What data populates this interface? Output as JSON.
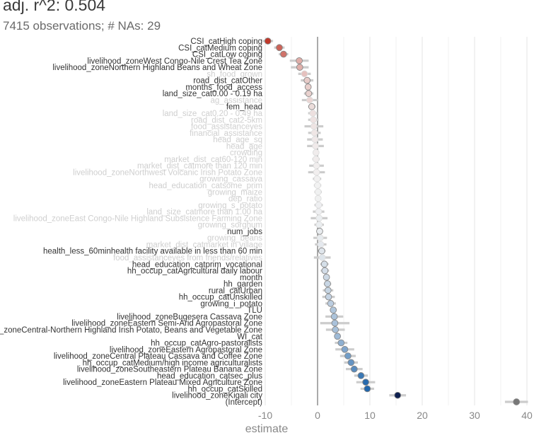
{
  "title": "adj. r^2: 0.504",
  "subtitle": "7415 observations; # NAs: 29",
  "chart_data": {
    "type": "scatter",
    "xlabel": "estimate",
    "xlim": [
      -10,
      40
    ],
    "xticks": [
      -10,
      0,
      10,
      20,
      30,
      40
    ],
    "grid": true,
    "colors": {
      "negative": "#c0392b",
      "neutral": "#f2f2f2",
      "positive": "#2166ac",
      "intercept": "#777777"
    },
    "points": [
      {
        "label": "CSI_catHigh coping",
        "estimate": -9.5,
        "ci": [
          -10.5,
          -8.5
        ],
        "sig": true
      },
      {
        "label": "CSI_catMedium coping",
        "estimate": -7.3,
        "ci": [
          -8.3,
          -6.3
        ],
        "sig": true
      },
      {
        "label": "CSI_catLow coping",
        "estimate": -6.5,
        "ci": [
          -7.4,
          -5.6
        ],
        "sig": true
      },
      {
        "label": "livelihood_zoneWest Congo-Nile Crest Tea Zone",
        "estimate": -3.5,
        "ci": [
          -5.3,
          -1.7
        ],
        "sig": true
      },
      {
        "label": "livelihood_zoneNorthern Highland Beans and Wheat Zone",
        "estimate": -3.4,
        "ci": [
          -5.1,
          -1.7
        ],
        "sig": true
      },
      {
        "label": "sh_food_grown",
        "estimate": -2.5,
        "ci": [
          -3.7,
          -1.3
        ],
        "sig": false
      },
      {
        "label": "road_dist_catOther",
        "estimate": -2.0,
        "ci": [
          -3.2,
          -0.8
        ],
        "sig": true
      },
      {
        "label": "months_food_access",
        "estimate": -1.8,
        "ci": [
          -2.3,
          -1.3
        ],
        "sig": true
      },
      {
        "label": "land_size_cat0.00 - 0.19 ha",
        "estimate": -1.7,
        "ci": [
          -2.6,
          -0.8
        ],
        "sig": true
      },
      {
        "label": "ag_assistance",
        "estimate": -1.5,
        "ci": [
          -3.0,
          0.0
        ],
        "sig": false
      },
      {
        "label": "fem_head",
        "estimate": -1.1,
        "ci": [
          -1.8,
          -0.4
        ],
        "sig": true
      },
      {
        "label": "land_size_cat0.20 - 0.49 ha",
        "estimate": -0.9,
        "ci": [
          -1.8,
          0.0
        ],
        "sig": false
      },
      {
        "label": "road_dist_cat2-5km",
        "estimate": -0.8,
        "ci": [
          -1.8,
          0.2
        ],
        "sig": false
      },
      {
        "label": "food_assistanceyes",
        "estimate": -0.7,
        "ci": [
          -2.5,
          1.1
        ],
        "sig": false
      },
      {
        "label": "financial_assistance",
        "estimate": -0.6,
        "ci": [
          -1.8,
          0.6
        ],
        "sig": false
      },
      {
        "label": "head_age_sq",
        "estimate": -0.5,
        "ci": [
          -2.0,
          1.0
        ],
        "sig": false
      },
      {
        "label": "head_age",
        "estimate": -0.4,
        "ci": [
          -2.0,
          1.2
        ],
        "sig": false
      },
      {
        "label": "crowding",
        "estimate": -0.3,
        "ci": [
          -0.8,
          0.2
        ],
        "sig": false
      },
      {
        "label": "market_dist_cat60-120 min",
        "estimate": -0.3,
        "ci": [
          -1.0,
          0.4
        ],
        "sig": false
      },
      {
        "label": "market_dist_catmore than 120 min",
        "estimate": -0.2,
        "ci": [
          -1.6,
          1.2
        ],
        "sig": false
      },
      {
        "label": "livelihood_zoneNorthwest Volcanic Irish Potato Zone",
        "estimate": -0.2,
        "ci": [
          -1.8,
          1.4
        ],
        "sig": false
      },
      {
        "label": "growing_cassava",
        "estimate": -0.1,
        "ci": [
          -0.9,
          0.7
        ],
        "sig": false
      },
      {
        "label": "head_education_catsome_prim",
        "estimate": 0.0,
        "ci": [
          -0.7,
          0.7
        ],
        "sig": false
      },
      {
        "label": "growing_maize",
        "estimate": 0.1,
        "ci": [
          -0.6,
          0.8
        ],
        "sig": false
      },
      {
        "label": "dep_ratio",
        "estimate": 0.1,
        "ci": [
          -0.5,
          0.7
        ],
        "sig": false
      },
      {
        "label": "growing_s_potato",
        "estimate": 0.2,
        "ci": [
          -0.6,
          1.0
        ],
        "sig": false
      },
      {
        "label": "land_size_catmore than 1.00 ha",
        "estimate": 0.2,
        "ci": [
          -0.9,
          1.3
        ],
        "sig": false
      },
      {
        "label": "livelihood_zoneEast Congo-Nile Highland Subsistence Farming Zone",
        "estimate": 0.3,
        "ci": [
          -1.3,
          1.9
        ],
        "sig": false
      },
      {
        "label": "growing_sorghum",
        "estimate": 0.3,
        "ci": [
          -0.6,
          1.2
        ],
        "sig": false
      },
      {
        "label": "num_jobs",
        "estimate": 0.4,
        "ci": [
          0.0,
          0.8
        ],
        "sig": true
      },
      {
        "label": "growing_beans",
        "estimate": 0.5,
        "ci": [
          -0.8,
          1.8
        ],
        "sig": false
      },
      {
        "label": "market_dist_catmarket in village",
        "estimate": 0.6,
        "ci": [
          -0.5,
          1.7
        ],
        "sig": false
      },
      {
        "label": "health_less_60minhealth facility available in less than 60 min",
        "estimate": 0.8,
        "ci": [
          0.1,
          1.5
        ],
        "sig": true
      },
      {
        "label": "food_assistanceyes from friends/relatives",
        "estimate": 0.9,
        "ci": [
          -0.7,
          2.5
        ],
        "sig": false
      },
      {
        "label": "head_education_catprim_vocational",
        "estimate": 1.3,
        "ci": [
          0.5,
          2.1
        ],
        "sig": true
      },
      {
        "label": "hh_occup_catAgricultural daily labour",
        "estimate": 1.4,
        "ci": [
          0.6,
          2.2
        ],
        "sig": true
      },
      {
        "label": "month",
        "estimate": 1.7,
        "ci": [
          1.3,
          2.1
        ],
        "sig": true
      },
      {
        "label": "hh_garden",
        "estimate": 1.9,
        "ci": [
          1.2,
          2.6
        ],
        "sig": true
      },
      {
        "label": "rural_catUrban",
        "estimate": 2.0,
        "ci": [
          1.0,
          3.0
        ],
        "sig": true
      },
      {
        "label": "hh_occup_catUnskilled",
        "estimate": 2.1,
        "ci": [
          0.9,
          3.3
        ],
        "sig": true
      },
      {
        "label": "growing_i_potato",
        "estimate": 2.5,
        "ci": [
          1.5,
          3.5
        ],
        "sig": true
      },
      {
        "label": "TLU",
        "estimate": 3.0,
        "ci": [
          2.5,
          3.5
        ],
        "sig": true
      },
      {
        "label": "livelihood_zoneBugesera Cassava Zone",
        "estimate": 3.2,
        "ci": [
          1.5,
          4.9
        ],
        "sig": true
      },
      {
        "label": "livelihood_zoneEastern Semi-Arid Agropastoral Zone",
        "estimate": 3.3,
        "ci": [
          0.5,
          6.1
        ],
        "sig": true
      },
      {
        "label": "livelihood_zoneCentral-Northern Highland Irish Potato, Beans and Vegetable Zone",
        "estimate": 3.4,
        "ci": [
          1.6,
          5.2
        ],
        "sig": true
      },
      {
        "label": "WI_cat",
        "estimate": 3.8,
        "ci": [
          3.2,
          4.4
        ],
        "sig": true
      },
      {
        "label": "hh_occup_catAgro-pastoralists",
        "estimate": 4.5,
        "ci": [
          3.3,
          5.7
        ],
        "sig": true
      },
      {
        "label": "livelihood_zoneEastern Agropastoral Zone",
        "estimate": 5.2,
        "ci": [
          3.4,
          7.0
        ],
        "sig": true
      },
      {
        "label": "livelihood_zoneCentral Plateau Cassava and Coffee Zone",
        "estimate": 5.8,
        "ci": [
          4.3,
          7.3
        ],
        "sig": true
      },
      {
        "label": "hh_occup_catMedium/high income agriculturalists",
        "estimate": 6.4,
        "ci": [
          5.1,
          7.7
        ],
        "sig": true
      },
      {
        "label": "livelihood_zoneSoutheastern Plateau Banana Zone",
        "estimate": 7.0,
        "ci": [
          5.4,
          8.6
        ],
        "sig": true
      },
      {
        "label": "head_education_catsec_plus",
        "estimate": 8.3,
        "ci": [
          7.0,
          9.6
        ],
        "sig": true
      },
      {
        "label": "livelihood_zoneEastern Plateau Mixed Agriculture Zone",
        "estimate": 9.2,
        "ci": [
          7.4,
          11.0
        ],
        "sig": true
      },
      {
        "label": "hh_occup_catSkilled",
        "estimate": 9.5,
        "ci": [
          8.2,
          10.8
        ],
        "sig": true
      },
      {
        "label": "livelihood_zoneKigali city",
        "estimate": 15.3,
        "ci": [
          13.7,
          16.9
        ],
        "sig": true
      },
      {
        "label": "(Intercept)",
        "estimate": 38.0,
        "ci": [
          35.8,
          40.2
        ],
        "sig": true
      }
    ]
  }
}
